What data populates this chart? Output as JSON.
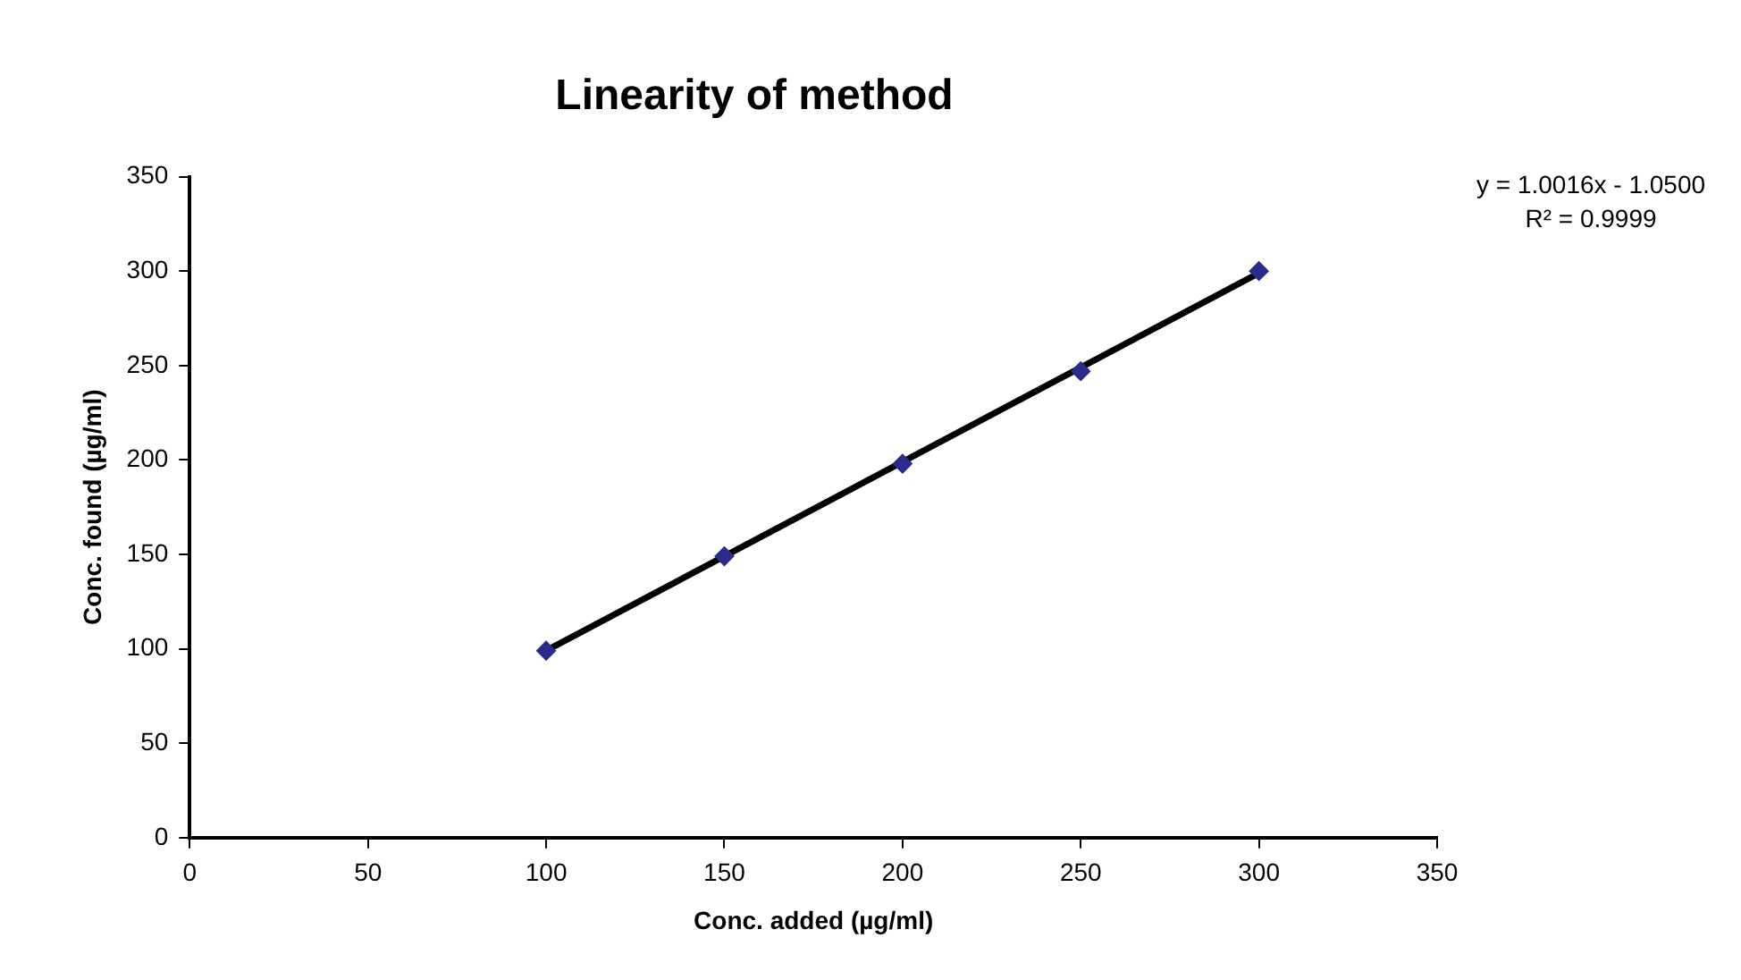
{
  "chart_data": {
    "type": "scatter",
    "title": "Linearity of method",
    "xlabel": "Conc. added (µg/ml)",
    "ylabel": "Conc. found (µg/ml)",
    "annotations": [
      "y = 1.0016x - 1.0500",
      "R² = 0.9999"
    ],
    "series": [
      {
        "type": "scatter",
        "color": "#2b2b8c",
        "marker": "diamond",
        "x": [
          100,
          150,
          200,
          250,
          300
        ],
        "values": [
          99,
          149,
          198,
          247,
          300
        ]
      },
      {
        "type": "line",
        "color": "#000000",
        "marker": "none",
        "line_style": "solid",
        "x": [
          100,
          300
        ],
        "values": [
          99,
          299
        ]
      }
    ],
    "xlim": [
      0,
      350
    ],
    "xticks": [
      0,
      50,
      100,
      150,
      200,
      250,
      300,
      350
    ],
    "ylim": [
      0,
      350
    ],
    "yticks": [
      0,
      50,
      100,
      150,
      200,
      250,
      300,
      350
    ],
    "grid": false,
    "legend": false
  }
}
